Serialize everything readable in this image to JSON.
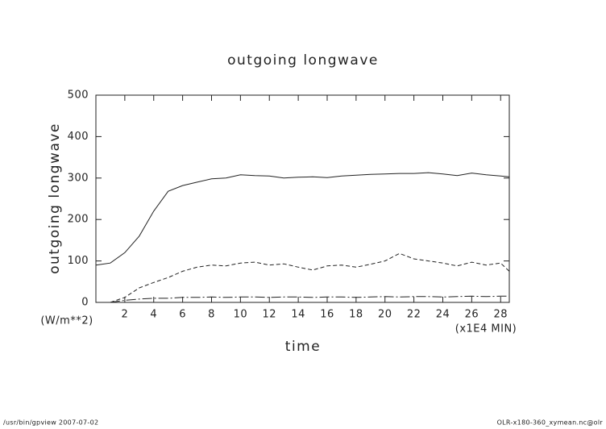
{
  "chart_data": {
    "type": "line",
    "title": "outgoing longwave",
    "y_label": "outgoing longwave",
    "x_label": "time",
    "y_unit": "(W/m**2)",
    "x_unit": "(x1E4 MIN)",
    "footer_left": "/usr/bin/gpview  2007-07-02",
    "footer_right": "OLR-x180-360_xymean.nc@olr",
    "x": [
      0,
      1,
      2,
      3,
      4,
      5,
      6,
      7,
      8,
      9,
      10,
      11,
      12,
      13,
      14,
      15,
      16,
      17,
      18,
      19,
      20,
      21,
      22,
      23,
      24,
      25,
      26,
      27,
      28,
      28.6
    ],
    "series": [
      {
        "color": "#222222",
        "dash": "solid",
        "values": [
          90,
          95,
          120,
          160,
          220,
          268,
          282,
          290,
          298,
          300,
          308,
          306,
          305,
          300,
          302,
          303,
          301,
          305,
          307,
          309,
          310,
          311,
          311,
          313,
          310,
          306,
          312,
          308,
          305,
          303
        ]
      },
      {
        "color": "#222222",
        "dash": "dashed",
        "values": [
          null,
          0,
          12,
          35,
          48,
          60,
          75,
          85,
          90,
          88,
          95,
          97,
          90,
          93,
          85,
          78,
          88,
          90,
          85,
          92,
          100,
          118,
          105,
          100,
          95,
          88,
          97,
          90,
          95,
          75
        ]
      },
      {
        "color": "#222222",
        "dash": "dashdot",
        "values": [
          null,
          0,
          5,
          8,
          10,
          10,
          12,
          12,
          13,
          12,
          13,
          13,
          12,
          13,
          13,
          12,
          13,
          13,
          12,
          13,
          14,
          13,
          14,
          14,
          13,
          14,
          15,
          14,
          15,
          15
        ]
      }
    ],
    "xlim": [
      0,
      28.6
    ],
    "ylim": [
      0,
      500
    ],
    "xticks": [
      2,
      4,
      6,
      8,
      10,
      12,
      14,
      16,
      18,
      20,
      22,
      24,
      26,
      28
    ],
    "yticks": [
      0,
      100,
      200,
      300,
      400,
      500
    ]
  }
}
